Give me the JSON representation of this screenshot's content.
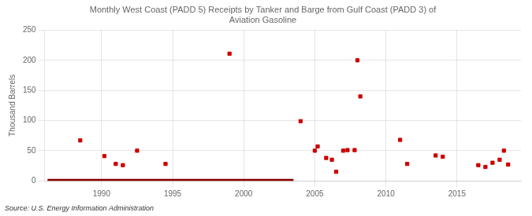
{
  "chart_data": {
    "type": "scatter",
    "title": "Monthly West Coast (PADD 5) Receipts by Tanker and Barge from Gulf Coast (PADD 3) of\nAviation Gasoline",
    "ylabel": "Thousand Barrels",
    "annotations": [
      "Source: U.S. Energy Information Administration"
    ],
    "xlim": [
      1986.0,
      2019.5
    ],
    "xticks": [
      1990,
      1995,
      2000,
      2005,
      2010,
      2015
    ],
    "ylim": [
      0,
      250
    ],
    "yticks": [
      0,
      50,
      100,
      150,
      200,
      250
    ],
    "grid": true,
    "series": [
      {
        "type": "line",
        "color": "#8b0000",
        "x": [
          1986.2,
          2003.5
        ],
        "values": [
          0,
          0
        ]
      },
      {
        "type": "scatter",
        "color": "#cc0000",
        "marker": "square",
        "x": [
          1988.5,
          1990.2,
          1991.0,
          1991.5,
          1992.5,
          1994.5,
          1999.0,
          2004.0,
          2005.0,
          2005.2,
          2005.8,
          2006.2,
          2006.5,
          2007.0,
          2007.3,
          2007.8,
          2008.0,
          2008.2,
          2011.0,
          2011.5,
          2013.5,
          2014.0,
          2016.5,
          2017.0,
          2017.5,
          2018.0,
          2018.3,
          2018.6
        ],
        "values": [
          67,
          41,
          28,
          26,
          50,
          28,
          211,
          99,
          50,
          57,
          38,
          35,
          15,
          50,
          51,
          51,
          200,
          140,
          68,
          28,
          42,
          40,
          26,
          23,
          30,
          35,
          50,
          27
        ]
      }
    ]
  }
}
